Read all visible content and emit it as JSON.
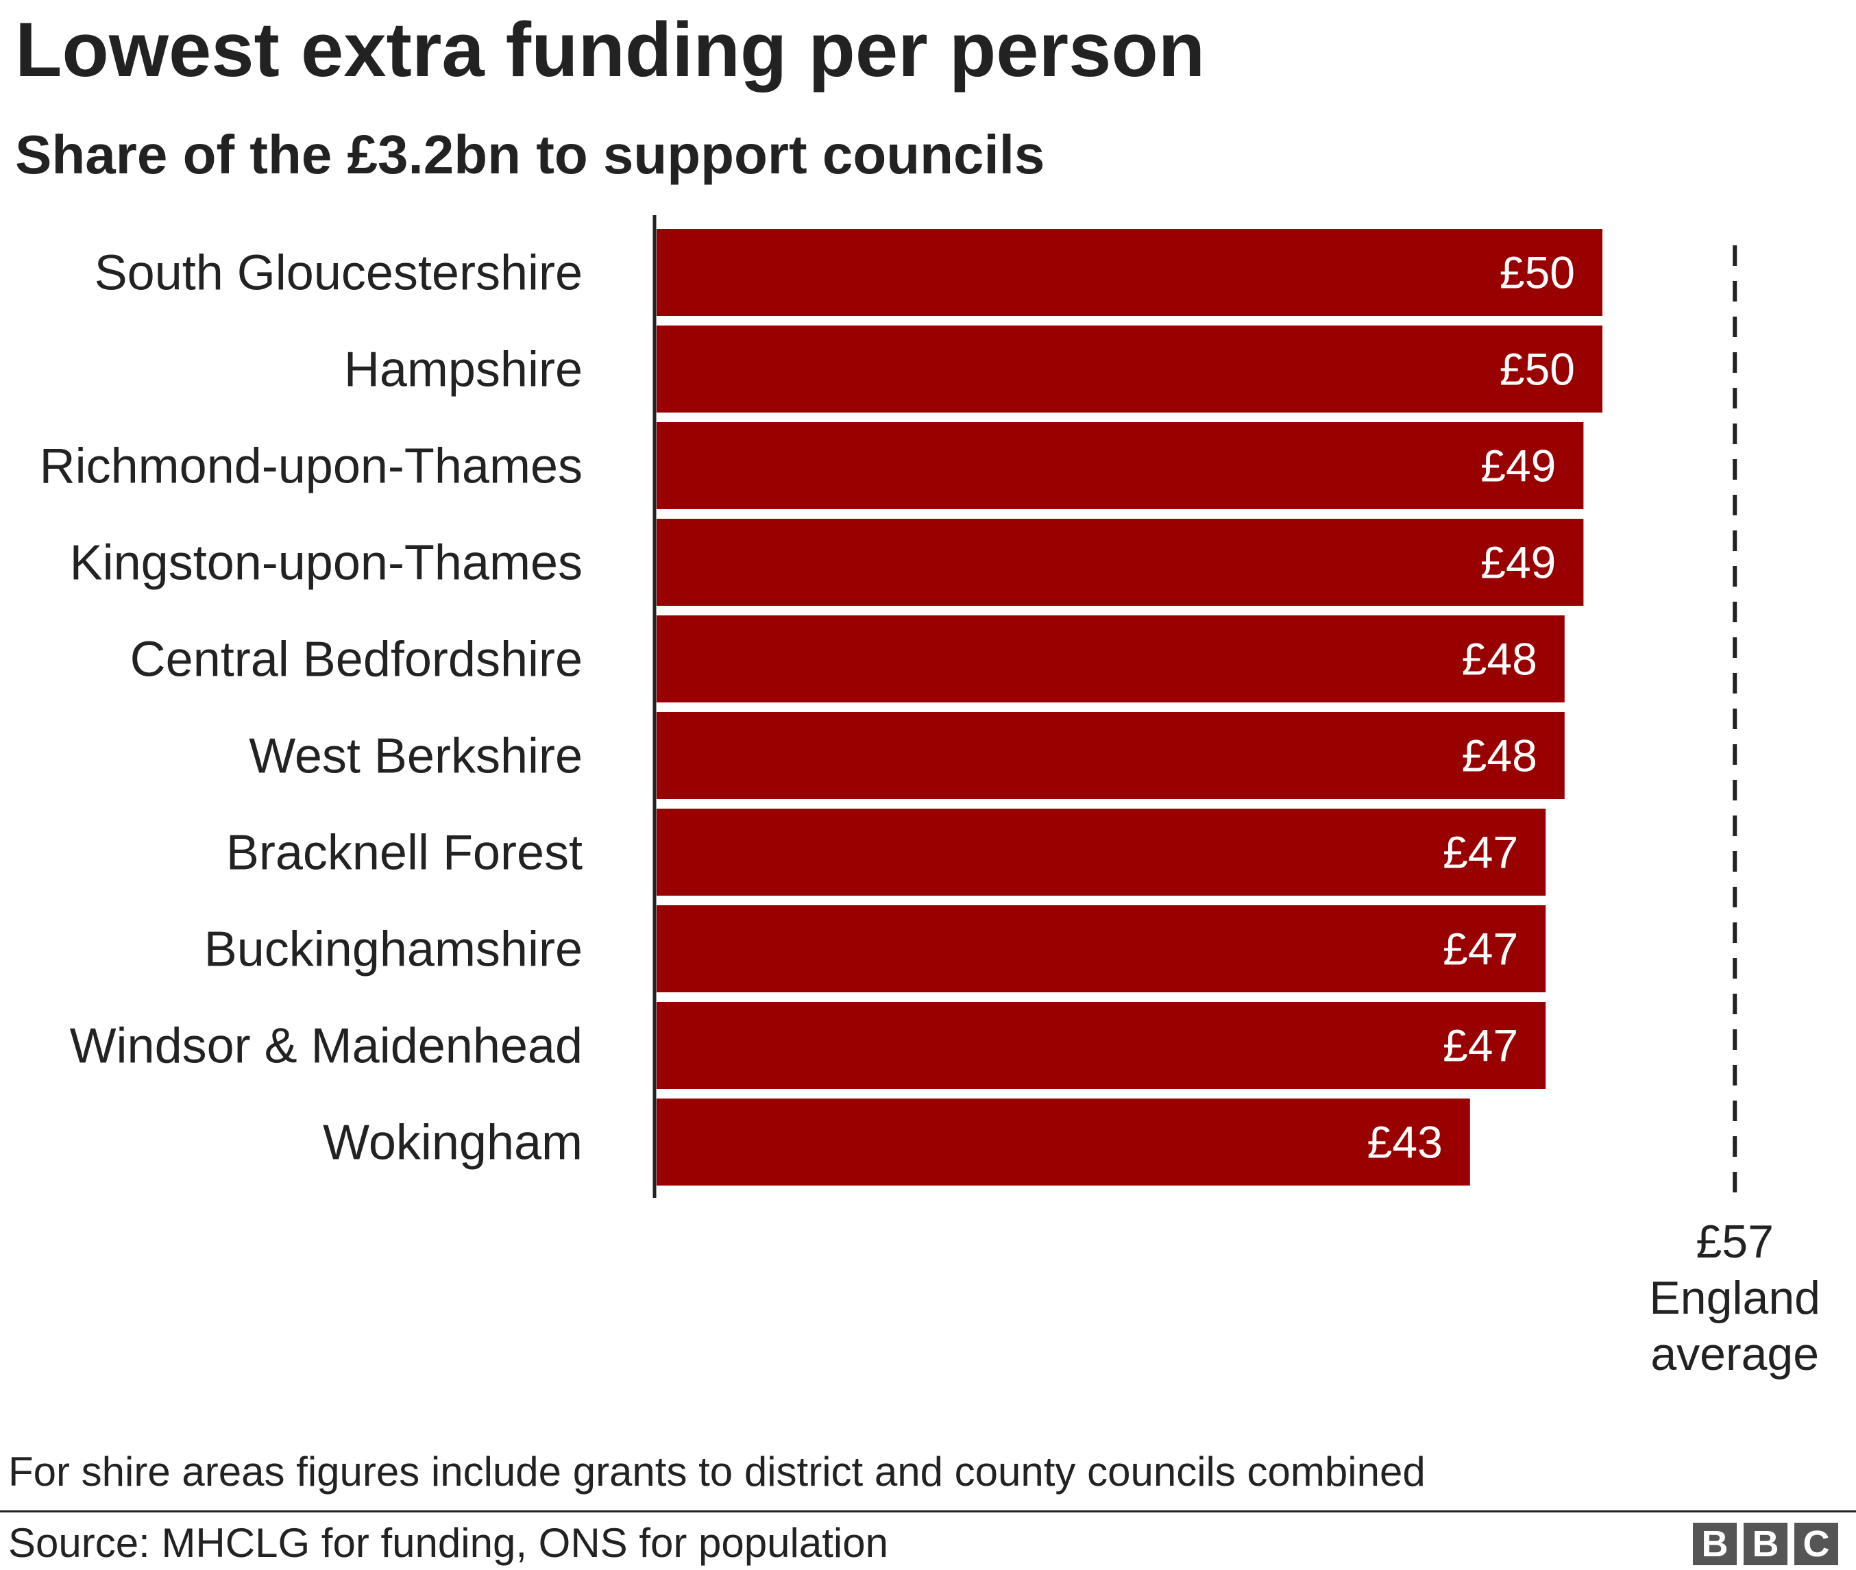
{
  "chart_data": {
    "type": "bar",
    "orientation": "horizontal",
    "title": "Lowest extra funding per person",
    "subtitle": "Share of the £3.2bn to support councils",
    "categories": [
      "South Gloucestershire",
      "Hampshire",
      "Richmond-upon-Thames",
      "Kingston-upon-Thames",
      "Central Bedfordshire",
      "West Berkshire",
      "Bracknell Forest",
      "Buckinghamshire",
      "Windsor & Maidenhead",
      "Wokingham"
    ],
    "values": [
      50,
      50,
      49,
      49,
      48,
      48,
      47,
      47,
      47,
      43
    ],
    "data_labels": [
      "£50",
      "£50",
      "£49",
      "£49",
      "£48",
      "£48",
      "£47",
      "£47",
      "£47",
      "£43"
    ],
    "xlim": [
      0,
      60
    ],
    "bar_color": "#990000",
    "reference_line": {
      "value": 57,
      "label_value": "£57",
      "label_lines": [
        "England",
        "average"
      ],
      "style": "dashed"
    },
    "grid": false,
    "legend": "none"
  },
  "footnote": "For shire areas figures include grants to district and county councils combined",
  "source": "Source: MHCLG for funding, ONS for population",
  "logo": {
    "letters": [
      "B",
      "B",
      "C"
    ],
    "color": "#555555"
  }
}
